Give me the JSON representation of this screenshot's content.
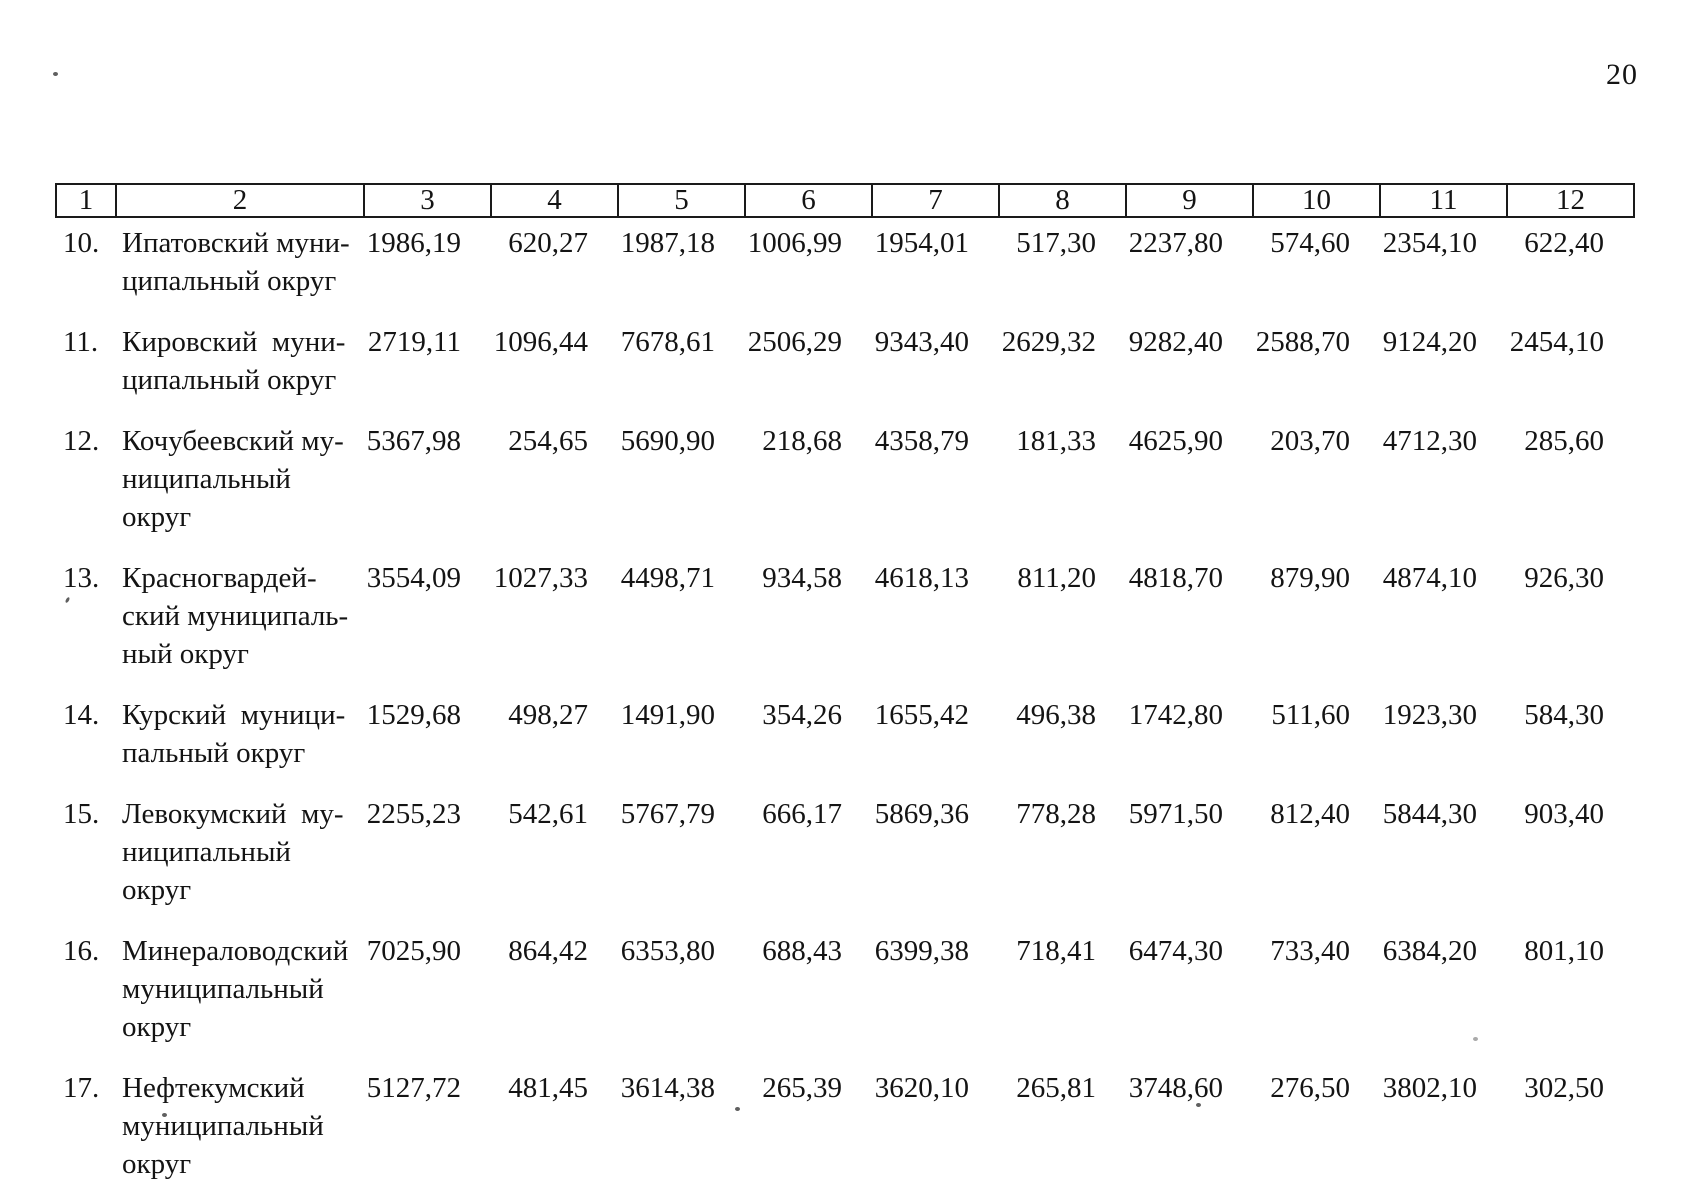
{
  "page": {
    "number": "20"
  },
  "table": {
    "column_headers": [
      "1",
      "2",
      "3",
      "4",
      "5",
      "6",
      "7",
      "8",
      "9",
      "10",
      "11",
      "12"
    ],
    "rows": [
      {
        "num": "10.",
        "name_lines": [
          "Ипатовский муни-",
          "ципальный округ"
        ],
        "values": [
          "1986,19",
          "620,27",
          "1987,18",
          "1006,99",
          "1954,01",
          "517,30",
          "2237,80",
          "574,60",
          "2354,10",
          "622,40"
        ]
      },
      {
        "num": "11.",
        "name_lines": [
          "Кировский  муни-",
          "ципальный округ"
        ],
        "values": [
          "2719,11",
          "1096,44",
          "7678,61",
          "2506,29",
          "9343,40",
          "2629,32",
          "9282,40",
          "2588,70",
          "9124,20",
          "2454,10"
        ]
      },
      {
        "num": "12.",
        "name_lines": [
          "Кочубеевский му-",
          "ниципальный",
          "округ"
        ],
        "values": [
          "5367,98",
          "254,65",
          "5690,90",
          "218,68",
          "4358,79",
          "181,33",
          "4625,90",
          "203,70",
          "4712,30",
          "285,60"
        ]
      },
      {
        "num": "13.",
        "name_lines": [
          "Красногвардей-",
          "ский муниципаль-",
          "ный округ"
        ],
        "values": [
          "3554,09",
          "1027,33",
          "4498,71",
          "934,58",
          "4618,13",
          "811,20",
          "4818,70",
          "879,90",
          "4874,10",
          "926,30"
        ]
      },
      {
        "num": "14.",
        "name_lines": [
          "Курский  муници-",
          "пальный округ"
        ],
        "values": [
          "1529,68",
          "498,27",
          "1491,90",
          "354,26",
          "1655,42",
          "496,38",
          "1742,80",
          "511,60",
          "1923,30",
          "584,30"
        ]
      },
      {
        "num": "15.",
        "name_lines": [
          "Левокумский  му-",
          "ниципальный",
          "округ"
        ],
        "values": [
          "2255,23",
          "542,61",
          "5767,79",
          "666,17",
          "5869,36",
          "778,28",
          "5971,50",
          "812,40",
          "5844,30",
          "903,40"
        ]
      },
      {
        "num": "16.",
        "name_lines": [
          "Минераловодский",
          "муниципальный",
          "округ"
        ],
        "values": [
          "7025,90",
          "864,42",
          "6353,80",
          "688,43",
          "6399,38",
          "718,41",
          "6474,30",
          "733,40",
          "6384,20",
          "801,10"
        ]
      },
      {
        "num": "17.",
        "name_lines": [
          "Нефтекумский",
          "муниципальный",
          "округ"
        ],
        "values": [
          "5127,72",
          "481,45",
          "3614,38",
          "265,39",
          "3620,10",
          "265,81",
          "3748,60",
          "276,50",
          "3802,10",
          "302,50"
        ]
      }
    ]
  }
}
